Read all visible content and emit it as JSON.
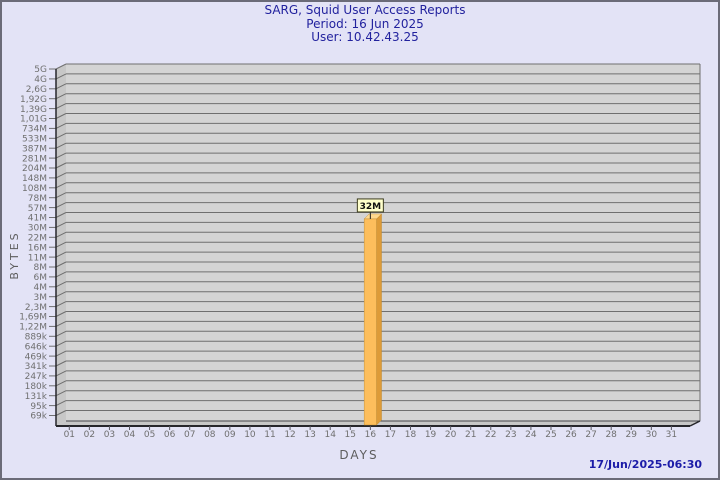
{
  "header": {
    "title": "SARG, Squid User Access Reports",
    "period": "Period: 16 Jun 2025",
    "user": "User: 10.42.43.25"
  },
  "footer": {
    "timestamp": "17/Jun/2025-06:30"
  },
  "chart_data": {
    "type": "bar",
    "title": "SARG, Squid User Access Reports",
    "subtitle": [
      "Period: 16 Jun 2025",
      "User: 10.42.43.25"
    ],
    "xlabel": "DAYS",
    "ylabel": "BYTES",
    "y_scale": "log",
    "y_log_min": 69000,
    "y_log_max": 5000000000,
    "y_tick_labels": [
      "5G",
      "4G",
      "2,6G",
      "1,92G",
      "1,39G",
      "1,01G",
      "734M",
      "533M",
      "387M",
      "281M",
      "204M",
      "148M",
      "108M",
      "78M",
      "57M",
      "41M",
      "30M",
      "22M",
      "16M",
      "11M",
      "8M",
      "6M",
      "4M",
      "3M",
      "2,3M",
      "1,69M",
      "1,22M",
      "889k",
      "646k",
      "469k",
      "341k",
      "247k",
      "180k",
      "131k",
      "95k",
      "69k"
    ],
    "categories": [
      "01",
      "02",
      "03",
      "04",
      "05",
      "06",
      "07",
      "08",
      "09",
      "10",
      "11",
      "12",
      "13",
      "14",
      "15",
      "16",
      "17",
      "18",
      "19",
      "20",
      "21",
      "22",
      "23",
      "24",
      "25",
      "26",
      "27",
      "28",
      "29",
      "30",
      "31"
    ],
    "values": [
      0,
      0,
      0,
      0,
      0,
      0,
      0,
      0,
      0,
      0,
      0,
      0,
      0,
      0,
      0,
      33554432,
      0,
      0,
      0,
      0,
      0,
      0,
      0,
      0,
      0,
      0,
      0,
      0,
      0,
      0,
      0
    ],
    "bar_value_label": "32M",
    "legend": "none",
    "grid": "horizontal"
  },
  "colors": {
    "page_bg": "#e3e3f6",
    "page_border": "#6b6b78",
    "title_text": "#22229e",
    "timestamp_text": "#1c1ca8",
    "plot_bg": "#d4d4d4",
    "wall_color": "#c7c7c7",
    "grid_color": "#6f6f6f",
    "axis_line": "#26262b",
    "tick_text": "#707070",
    "axis_title_text": "#5d5d5d",
    "bar_front": "#fdbe5c",
    "bar_side": "#dd9b38",
    "bar_top": "#ffd98f",
    "bar_edge": "#b8872e",
    "label_box_bg": "#ffffcc",
    "label_box_border": "#3c3c1e",
    "label_box_text": "#111111"
  }
}
